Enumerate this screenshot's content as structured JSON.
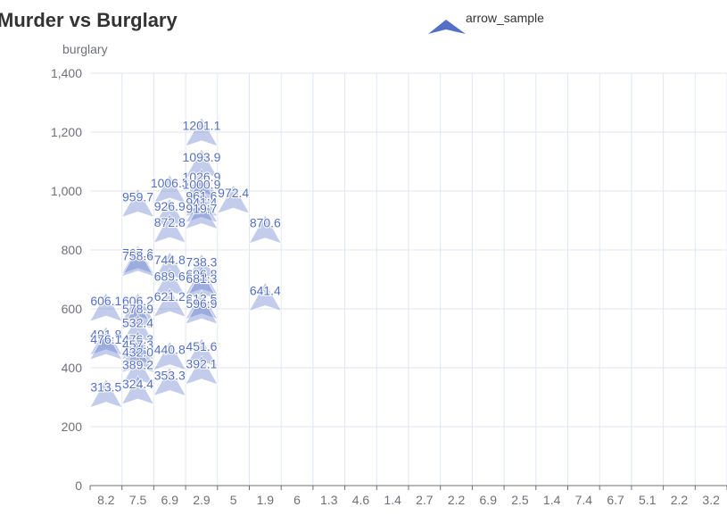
{
  "chart_data": {
    "type": "scatter",
    "title": "Murder vs Burglary",
    "ylabel": "burglary",
    "xlabel": "",
    "legend": {
      "label": "arrow_sample",
      "position": "top-center"
    },
    "series_color": "#5470c6",
    "symbol": "arrow",
    "grid": true,
    "ylim": [
      0,
      1400
    ],
    "yticks": [
      0,
      200,
      400,
      600,
      800,
      1000,
      1200,
      1400
    ],
    "ytick_labels": [
      "0",
      "200",
      "400",
      "600",
      "800",
      "1,000",
      "1,200",
      "1,400"
    ],
    "x_categories": [
      "8.2",
      "7.5",
      "6.9",
      "2.9",
      "5",
      "1.9",
      "6",
      "1.3",
      "4.6",
      "1.4",
      "2.7",
      "2.2",
      "6.9",
      "2.5",
      "1.4",
      "7.4",
      "6.7",
      "5.1",
      "2.2",
      "3.2"
    ],
    "points": [
      {
        "x": "2.9",
        "y": 1201.1
      },
      {
        "x": "2.9",
        "y": 1093.9
      },
      {
        "x": "2.9",
        "y": 1026.9
      },
      {
        "x": "6.9",
        "y": 1006.5
      },
      {
        "x": "2.9",
        "y": 1000.9
      },
      {
        "x": "5",
        "y": 972.4
      },
      {
        "x": "7.5",
        "y": 959.7
      },
      {
        "x": "2.9",
        "y": 961.6
      },
      {
        "x": "2.9",
        "y": 941.4
      },
      {
        "x": "6.9",
        "y": 926.9
      },
      {
        "x": "2.9",
        "y": 919.7
      },
      {
        "x": "6.9",
        "y": 872.8
      },
      {
        "x": "1.9",
        "y": 870.6
      },
      {
        "x": "7.5",
        "y": 767.6
      },
      {
        "x": "7.5",
        "y": 758.6
      },
      {
        "x": "6.9",
        "y": 744.8
      },
      {
        "x": "2.9",
        "y": 738.3
      },
      {
        "x": "6.9",
        "y": 689.6
      },
      {
        "x": "2.9",
        "y": 696.8
      },
      {
        "x": "2.9",
        "y": 681.3
      },
      {
        "x": "1.9",
        "y": 641.4
      },
      {
        "x": "6.9",
        "y": 621.2
      },
      {
        "x": "2.9",
        "y": 613.5
      },
      {
        "x": "8.2",
        "y": 606.1
      },
      {
        "x": "7.5",
        "y": 606.2
      },
      {
        "x": "2.9",
        "y": 596.9
      },
      {
        "x": "7.5",
        "y": 578.9
      },
      {
        "x": "7.5",
        "y": 532.4
      },
      {
        "x": "8.2",
        "y": 491.8
      },
      {
        "x": "7.5",
        "y": 476.3
      },
      {
        "x": "8.2",
        "y": 476.1
      },
      {
        "x": "7.5",
        "y": 457.3
      },
      {
        "x": "2.9",
        "y": 451.6
      },
      {
        "x": "6.9",
        "y": 440.8
      },
      {
        "x": "7.5",
        "y": 432.0
      },
      {
        "x": "7.5",
        "y": 389.2
      },
      {
        "x": "2.9",
        "y": 392.1
      },
      {
        "x": "6.9",
        "y": 353.3
      },
      {
        "x": "7.5",
        "y": 324.4
      },
      {
        "x": "8.2",
        "y": 313.5
      }
    ]
  }
}
